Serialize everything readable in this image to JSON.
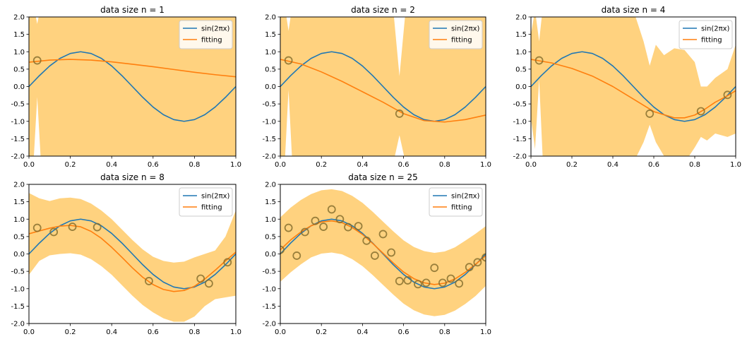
{
  "legend_labels": [
    "sin(2πx)",
    "fitting"
  ],
  "colors": {
    "true_curve": "#1f77b4",
    "fit_curve": "#ff7f0e",
    "band": "#ffa500",
    "points": "#7f6a2b"
  },
  "chart_data": [
    {
      "type": "line",
      "title": "data size n = 1",
      "xlim": [
        0,
        1
      ],
      "ylim": [
        -2,
        2
      ],
      "xticks": [
        "0.0",
        "0.2",
        "0.4",
        "0.6",
        "0.8",
        "1.0"
      ],
      "yticks": [
        "-2.0",
        "-1.5",
        "-1.0",
        "-0.5",
        "0.0",
        "0.5",
        "1.0",
        "1.5",
        "2.0"
      ],
      "legend_position": "upper right",
      "points": [
        [
          0.04,
          0.75
        ]
      ],
      "series": [
        {
          "name": "sin(2πx)",
          "x": [
            0,
            0.05,
            0.1,
            0.15,
            0.2,
            0.25,
            0.3,
            0.35,
            0.4,
            0.45,
            0.5,
            0.55,
            0.6,
            0.65,
            0.7,
            0.75,
            0.8,
            0.85,
            0.9,
            0.95,
            1.0
          ],
          "y": [
            0,
            0.31,
            0.59,
            0.81,
            0.95,
            1,
            0.95,
            0.81,
            0.59,
            0.31,
            0,
            -0.31,
            -0.59,
            -0.81,
            -0.95,
            -1,
            -0.95,
            -0.81,
            -0.59,
            -0.31,
            0
          ]
        },
        {
          "name": "fitting",
          "x": [
            0,
            0.1,
            0.2,
            0.3,
            0.4,
            0.5,
            0.6,
            0.7,
            0.8,
            0.9,
            1.0
          ],
          "y": [
            0.7,
            0.76,
            0.78,
            0.76,
            0.71,
            0.64,
            0.57,
            0.49,
            0.41,
            0.34,
            0.28
          ]
        }
      ],
      "band": {
        "x": [
          0,
          0.02,
          0.04,
          0.06,
          0.08,
          0.1,
          0.15,
          0.2,
          0.5,
          0.8,
          0.9,
          1.0
        ],
        "upper": [
          2.4,
          2.4,
          1.8,
          2.4,
          2.4,
          2.4,
          2.4,
          2.4,
          2.4,
          2.4,
          2.4,
          2.4
        ],
        "lower": [
          -2.4,
          -2.4,
          -0.3,
          -2.4,
          -2.4,
          -2.4,
          -2.4,
          -2.4,
          -2.4,
          -2.4,
          -2.4,
          -2.4
        ]
      }
    },
    {
      "type": "line",
      "title": "data size n = 2",
      "xlim": [
        0,
        1
      ],
      "ylim": [
        -2,
        2
      ],
      "xticks": [
        "0.0",
        "0.2",
        "0.4",
        "0.6",
        "0.8",
        "1.0"
      ],
      "yticks": [
        "-2.0",
        "-1.5",
        "-1.0",
        "-0.5",
        "0.0",
        "0.5",
        "1.0",
        "1.5",
        "2.0"
      ],
      "legend_position": "upper right",
      "points": [
        [
          0.04,
          0.75
        ],
        [
          0.58,
          -0.78
        ]
      ],
      "series": [
        {
          "name": "sin(2πx)",
          "x": [
            0,
            0.05,
            0.1,
            0.15,
            0.2,
            0.25,
            0.3,
            0.35,
            0.4,
            0.45,
            0.5,
            0.55,
            0.6,
            0.65,
            0.7,
            0.75,
            0.8,
            0.85,
            0.9,
            0.95,
            1.0
          ],
          "y": [
            0,
            0.31,
            0.59,
            0.81,
            0.95,
            1,
            0.95,
            0.81,
            0.59,
            0.31,
            0,
            -0.31,
            -0.59,
            -0.81,
            -0.95,
            -1,
            -0.95,
            -0.81,
            -0.59,
            -0.31,
            0
          ]
        },
        {
          "name": "fitting",
          "x": [
            0,
            0.1,
            0.2,
            0.3,
            0.4,
            0.5,
            0.6,
            0.7,
            0.8,
            0.9,
            1.0
          ],
          "y": [
            0.78,
            0.65,
            0.42,
            0.15,
            -0.15,
            -0.45,
            -0.78,
            -0.98,
            -1.02,
            -0.95,
            -0.82
          ]
        }
      ],
      "band": {
        "x": [
          0,
          0.02,
          0.04,
          0.06,
          0.08,
          0.1,
          0.2,
          0.4,
          0.5,
          0.55,
          0.58,
          0.61,
          0.65,
          0.7,
          0.8,
          0.9,
          1.0
        ],
        "upper": [
          2.4,
          2.4,
          1.6,
          2.4,
          2.4,
          2.4,
          2.4,
          2.4,
          2.4,
          2.2,
          0.3,
          2.2,
          2.4,
          2.4,
          2.4,
          2.4,
          2.4
        ],
        "lower": [
          -2.4,
          -2.4,
          -0.1,
          -2.4,
          -2.4,
          -2.4,
          -2.4,
          -2.4,
          -2.4,
          -2.2,
          -1.4,
          -2.2,
          -2.4,
          -2.4,
          -2.4,
          -2.4,
          -2.4
        ]
      }
    },
    {
      "type": "line",
      "title": "data size n = 4",
      "xlim": [
        0,
        1
      ],
      "ylim": [
        -2,
        2
      ],
      "xticks": [
        "0.0",
        "0.2",
        "0.4",
        "0.6",
        "0.8",
        "1.0"
      ],
      "yticks": [
        "-2.0",
        "-1.5",
        "-1.0",
        "-0.5",
        "0.0",
        "0.5",
        "1.0",
        "1.5",
        "2.0"
      ],
      "legend_position": "upper right",
      "points": [
        [
          0.04,
          0.75
        ],
        [
          0.58,
          -0.78
        ],
        [
          0.83,
          -0.71
        ],
        [
          0.96,
          -0.24
        ]
      ],
      "series": [
        {
          "name": "sin(2πx)",
          "x": [
            0,
            0.05,
            0.1,
            0.15,
            0.2,
            0.25,
            0.3,
            0.35,
            0.4,
            0.45,
            0.5,
            0.55,
            0.6,
            0.65,
            0.7,
            0.75,
            0.8,
            0.85,
            0.9,
            0.95,
            1.0
          ],
          "y": [
            0,
            0.31,
            0.59,
            0.81,
            0.95,
            1,
            0.95,
            0.81,
            0.59,
            0.31,
            0,
            -0.31,
            -0.59,
            -0.81,
            -0.95,
            -1,
            -0.95,
            -0.81,
            -0.59,
            -0.31,
            0
          ]
        },
        {
          "name": "fitting",
          "x": [
            0,
            0.1,
            0.2,
            0.3,
            0.4,
            0.5,
            0.6,
            0.7,
            0.75,
            0.8,
            0.85,
            0.9,
            0.95,
            1.0
          ],
          "y": [
            0.78,
            0.68,
            0.52,
            0.3,
            0.0,
            -0.36,
            -0.72,
            -0.9,
            -0.9,
            -0.82,
            -0.65,
            -0.45,
            -0.3,
            -0.12
          ]
        }
      ],
      "band": {
        "x": [
          0,
          0.02,
          0.04,
          0.06,
          0.1,
          0.15,
          0.2,
          0.3,
          0.4,
          0.5,
          0.55,
          0.58,
          0.61,
          0.65,
          0.7,
          0.75,
          0.8,
          0.83,
          0.86,
          0.9,
          0.96,
          1.0
        ],
        "upper": [
          1.5,
          2.2,
          1.3,
          2.4,
          2.4,
          2.4,
          2.4,
          2.4,
          2.4,
          2.2,
          1.3,
          0.6,
          1.2,
          0.9,
          1.1,
          1.05,
          0.7,
          0.0,
          0.0,
          0.25,
          0.5,
          1.2
        ],
        "lower": [
          -0.9,
          -1.8,
          0.2,
          -2.4,
          -2.4,
          -2.4,
          -2.4,
          -2.4,
          -2.4,
          -2.2,
          -1.6,
          -1.1,
          -1.6,
          -2.0,
          -2.2,
          -2.2,
          -1.75,
          -1.45,
          -1.55,
          -1.35,
          -1.45,
          -1.35
        ]
      }
    },
    {
      "type": "line",
      "title": "data size n = 8",
      "xlim": [
        0,
        1
      ],
      "ylim": [
        -2,
        2
      ],
      "xticks": [
        "0.0",
        "0.2",
        "0.4",
        "0.6",
        "0.8",
        "1.0"
      ],
      "yticks": [
        "-2.0",
        "-1.5",
        "-1.0",
        "-0.5",
        "0.0",
        "0.5",
        "1.0",
        "1.5",
        "2.0"
      ],
      "legend_position": "upper right",
      "points": [
        [
          0.04,
          0.75
        ],
        [
          0.12,
          0.63
        ],
        [
          0.21,
          0.78
        ],
        [
          0.33,
          0.77
        ],
        [
          0.58,
          -0.78
        ],
        [
          0.83,
          -0.71
        ],
        [
          0.87,
          -0.85
        ],
        [
          0.96,
          -0.24
        ]
      ],
      "series": [
        {
          "name": "sin(2πx)",
          "x": [
            0,
            0.05,
            0.1,
            0.15,
            0.2,
            0.25,
            0.3,
            0.35,
            0.4,
            0.45,
            0.5,
            0.55,
            0.6,
            0.65,
            0.7,
            0.75,
            0.8,
            0.85,
            0.9,
            0.95,
            1.0
          ],
          "y": [
            0,
            0.31,
            0.59,
            0.81,
            0.95,
            1,
            0.95,
            0.81,
            0.59,
            0.31,
            0,
            -0.31,
            -0.59,
            -0.81,
            -0.95,
            -1,
            -0.95,
            -0.81,
            -0.59,
            -0.31,
            0
          ]
        },
        {
          "name": "fitting",
          "x": [
            0,
            0.05,
            0.1,
            0.15,
            0.2,
            0.25,
            0.3,
            0.35,
            0.4,
            0.45,
            0.5,
            0.55,
            0.6,
            0.65,
            0.7,
            0.75,
            0.8,
            0.85,
            0.9,
            0.95,
            1.0
          ],
          "y": [
            0.58,
            0.66,
            0.74,
            0.8,
            0.82,
            0.78,
            0.65,
            0.45,
            0.19,
            -0.1,
            -0.4,
            -0.67,
            -0.88,
            -1.02,
            -1.08,
            -1.05,
            -0.93,
            -0.72,
            -0.47,
            -0.2,
            0.05
          ]
        }
      ],
      "band": {
        "x": [
          0,
          0.05,
          0.1,
          0.15,
          0.2,
          0.25,
          0.3,
          0.35,
          0.4,
          0.45,
          0.5,
          0.55,
          0.6,
          0.65,
          0.7,
          0.75,
          0.8,
          0.85,
          0.9,
          0.95,
          1.0
        ],
        "upper": [
          1.75,
          1.6,
          1.52,
          1.6,
          1.62,
          1.58,
          1.45,
          1.25,
          1.0,
          0.7,
          0.4,
          0.13,
          -0.08,
          -0.2,
          -0.25,
          -0.22,
          -0.1,
          0.0,
          0.1,
          0.5,
          1.25
        ],
        "lower": [
          -0.6,
          -0.2,
          -0.04,
          0.0,
          0.02,
          -0.02,
          -0.15,
          -0.35,
          -0.6,
          -0.9,
          -1.2,
          -1.47,
          -1.68,
          -1.85,
          -1.95,
          -1.95,
          -1.8,
          -1.5,
          -1.3,
          -1.25,
          -1.2
        ]
      }
    },
    {
      "type": "line",
      "title": "data size n = 25",
      "xlim": [
        0,
        1
      ],
      "ylim": [
        -2,
        2
      ],
      "xticks": [
        "0.0",
        "0.2",
        "0.4",
        "0.6",
        "0.8",
        "1.0"
      ],
      "yticks": [
        "-2.0",
        "-1.5",
        "-1.0",
        "-0.5",
        "0.0",
        "0.5",
        "1.0",
        "1.5",
        "2.0"
      ],
      "legend_position": "upper right",
      "points": [
        [
          0.0,
          0.12
        ],
        [
          0.04,
          0.75
        ],
        [
          0.08,
          -0.05
        ],
        [
          0.12,
          0.63
        ],
        [
          0.17,
          0.95
        ],
        [
          0.21,
          0.78
        ],
        [
          0.25,
          1.28
        ],
        [
          0.29,
          1.0
        ],
        [
          0.33,
          0.77
        ],
        [
          0.38,
          0.8
        ],
        [
          0.42,
          0.38
        ],
        [
          0.46,
          -0.05
        ],
        [
          0.5,
          0.57
        ],
        [
          0.54,
          0.04
        ],
        [
          0.58,
          -0.78
        ],
        [
          0.62,
          -0.76
        ],
        [
          0.67,
          -0.87
        ],
        [
          0.71,
          -0.83
        ],
        [
          0.75,
          -0.4
        ],
        [
          0.79,
          -0.83
        ],
        [
          0.83,
          -0.71
        ],
        [
          0.87,
          -0.85
        ],
        [
          0.92,
          -0.38
        ],
        [
          0.96,
          -0.24
        ],
        [
          1.0,
          -0.1
        ]
      ],
      "series": [
        {
          "name": "sin(2πx)",
          "x": [
            0,
            0.05,
            0.1,
            0.15,
            0.2,
            0.25,
            0.3,
            0.35,
            0.4,
            0.45,
            0.5,
            0.55,
            0.6,
            0.65,
            0.7,
            0.75,
            0.8,
            0.85,
            0.9,
            0.95,
            1.0
          ],
          "y": [
            0,
            0.31,
            0.59,
            0.81,
            0.95,
            1,
            0.95,
            0.81,
            0.59,
            0.31,
            0,
            -0.31,
            -0.59,
            -0.81,
            -0.95,
            -1,
            -0.95,
            -0.81,
            -0.59,
            -0.31,
            0
          ]
        },
        {
          "name": "fitting",
          "x": [
            0,
            0.05,
            0.1,
            0.15,
            0.2,
            0.25,
            0.3,
            0.35,
            0.4,
            0.45,
            0.5,
            0.55,
            0.6,
            0.65,
            0.7,
            0.75,
            0.8,
            0.85,
            0.9,
            0.95,
            1.0
          ],
          "y": [
            0.12,
            0.4,
            0.63,
            0.81,
            0.92,
            0.95,
            0.9,
            0.76,
            0.56,
            0.3,
            0.02,
            -0.26,
            -0.52,
            -0.71,
            -0.83,
            -0.88,
            -0.84,
            -0.72,
            -0.53,
            -0.3,
            -0.05
          ]
        }
      ],
      "band": {
        "x": [
          0,
          0.05,
          0.1,
          0.15,
          0.2,
          0.25,
          0.3,
          0.35,
          0.4,
          0.45,
          0.5,
          0.55,
          0.6,
          0.65,
          0.7,
          0.75,
          0.8,
          0.85,
          0.9,
          0.95,
          1.0
        ],
        "upper": [
          1.05,
          1.33,
          1.55,
          1.72,
          1.83,
          1.86,
          1.81,
          1.67,
          1.47,
          1.21,
          0.93,
          0.65,
          0.39,
          0.2,
          0.08,
          0.03,
          0.07,
          0.19,
          0.38,
          0.58,
          0.8
        ],
        "lower": [
          -0.8,
          -0.53,
          -0.3,
          -0.1,
          0.01,
          0.04,
          -0.01,
          -0.15,
          -0.35,
          -0.61,
          -0.89,
          -1.17,
          -1.43,
          -1.62,
          -1.74,
          -1.79,
          -1.75,
          -1.63,
          -1.44,
          -1.21,
          -0.92
        ]
      }
    }
  ]
}
